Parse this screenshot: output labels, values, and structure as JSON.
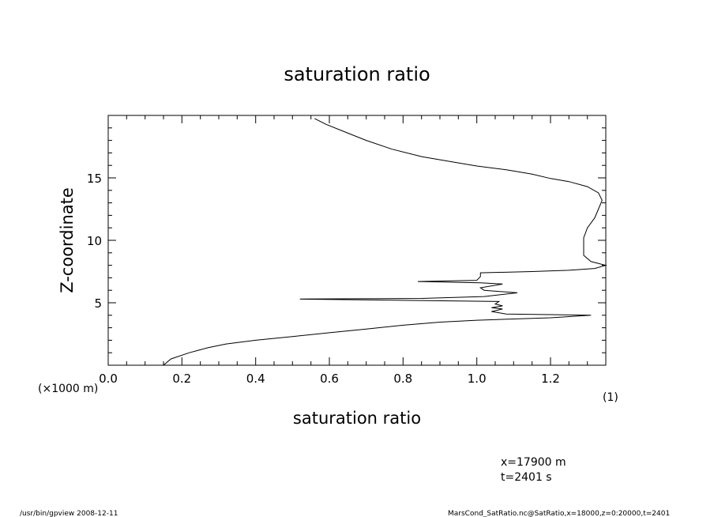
{
  "chart_data": {
    "type": "line",
    "title": "saturation ratio",
    "xlabel": "saturation ratio",
    "ylabel": "Z-coordinate",
    "x_unit": "(1)",
    "y_unit": "(×1000 m)",
    "xlim": [
      0.0,
      1.35
    ],
    "ylim": [
      0,
      20
    ],
    "x_ticks": [
      0.0,
      0.2,
      0.4,
      0.6,
      0.8,
      1.0,
      1.2
    ],
    "x_tick_labels": [
      "0.0",
      "0.2",
      "0.4",
      "0.6",
      "0.8",
      "1.0",
      "1.2"
    ],
    "y_ticks": [
      5,
      10,
      15
    ],
    "y_tick_labels": [
      "5",
      "10",
      "15"
    ],
    "grid": false,
    "series": [
      {
        "points": [
          [
            0.15,
            0.0
          ],
          [
            0.17,
            0.5
          ],
          [
            0.22,
            1.0
          ],
          [
            0.27,
            1.4
          ],
          [
            0.32,
            1.7
          ],
          [
            0.4,
            2.0
          ],
          [
            0.5,
            2.3
          ],
          [
            0.6,
            2.6
          ],
          [
            0.7,
            2.9
          ],
          [
            0.8,
            3.2
          ],
          [
            0.9,
            3.45
          ],
          [
            1.0,
            3.6
          ],
          [
            1.1,
            3.7
          ],
          [
            1.2,
            3.8
          ],
          [
            1.31,
            4.0
          ],
          [
            1.2,
            4.05
          ],
          [
            1.08,
            4.1
          ],
          [
            1.04,
            4.3
          ],
          [
            1.07,
            4.5
          ],
          [
            1.04,
            4.6
          ],
          [
            1.07,
            4.75
          ],
          [
            1.05,
            4.9
          ],
          [
            1.06,
            5.1
          ],
          [
            0.52,
            5.3
          ],
          [
            0.85,
            5.35
          ],
          [
            1.02,
            5.5
          ],
          [
            1.11,
            5.8
          ],
          [
            1.02,
            6.0
          ],
          [
            1.01,
            6.2
          ],
          [
            1.07,
            6.5
          ],
          [
            1.01,
            6.6
          ],
          [
            0.84,
            6.7
          ],
          [
            1.0,
            6.8
          ],
          [
            1.01,
            7.1
          ],
          [
            1.01,
            7.4
          ],
          [
            1.15,
            7.5
          ],
          [
            1.25,
            7.6
          ],
          [
            1.32,
            7.75
          ],
          [
            1.35,
            8.0
          ],
          [
            1.31,
            8.3
          ],
          [
            1.29,
            8.8
          ],
          [
            1.29,
            9.5
          ],
          [
            1.29,
            10.2
          ],
          [
            1.3,
            11.0
          ],
          [
            1.32,
            11.8
          ],
          [
            1.33,
            12.5
          ],
          [
            1.34,
            13.2
          ],
          [
            1.33,
            13.8
          ],
          [
            1.3,
            14.3
          ],
          [
            1.25,
            14.7
          ],
          [
            1.2,
            14.95
          ],
          [
            1.15,
            15.3
          ],
          [
            1.08,
            15.65
          ],
          [
            1.0,
            15.95
          ],
          [
            0.93,
            16.3
          ],
          [
            0.85,
            16.7
          ],
          [
            0.77,
            17.3
          ],
          [
            0.7,
            18.0
          ],
          [
            0.64,
            18.7
          ],
          [
            0.59,
            19.3
          ],
          [
            0.56,
            19.75
          ]
        ]
      }
    ]
  },
  "footer": {
    "info_x": "x=17900  m",
    "info_t": "t=2401  s",
    "program": "/usr/bin/gpview   2008-12-11",
    "source": "MarsCond_SatRatio.nc@SatRatio,x=18000,z=0:20000,t=2401"
  }
}
